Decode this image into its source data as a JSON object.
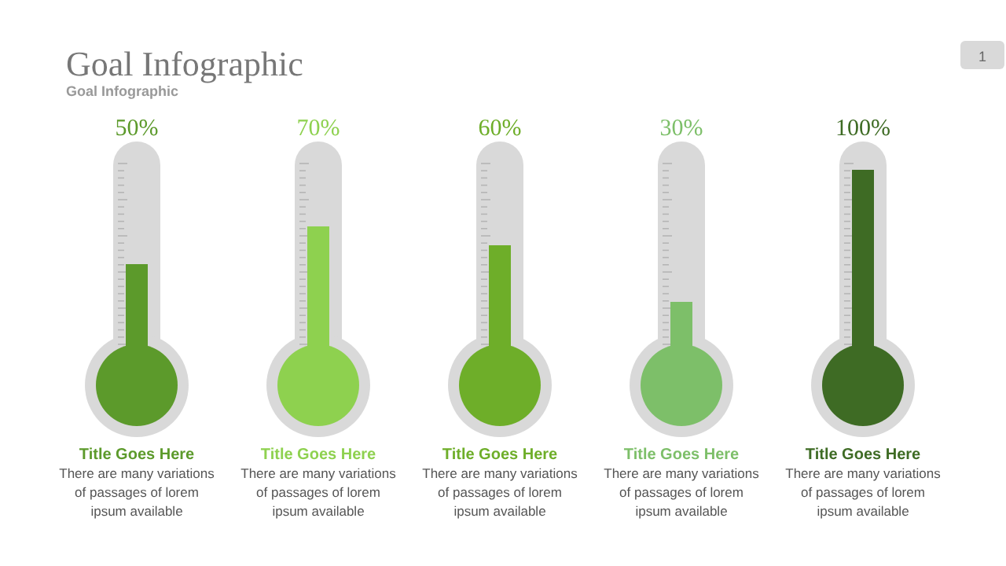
{
  "chart_data": {
    "type": "bar",
    "title": "Goal Infographic",
    "subtitle": "Goal Infographic",
    "categories": [
      "Title Goes Here",
      "Title Goes Here",
      "Title Goes Here",
      "Title Goes Here",
      "Title Goes Here"
    ],
    "values": [
      50,
      70,
      60,
      30,
      100
    ],
    "value_labels": [
      "50%",
      "70%",
      "60%",
      "30%",
      "100%"
    ],
    "colors": [
      "#5c9a2b",
      "#8ed14f",
      "#6eae29",
      "#7dbf69",
      "#3e6b24"
    ],
    "annotations": [
      "1",
      "There are many variations of passages of lorem ipsum available",
      "There are many variations of passages of lorem ipsum available",
      "There are many variations of passages of lorem ipsum available",
      "There are many variations of passages of lorem ipsum available",
      "There are many variations of passages of lorem ipsum available"
    ]
  }
}
